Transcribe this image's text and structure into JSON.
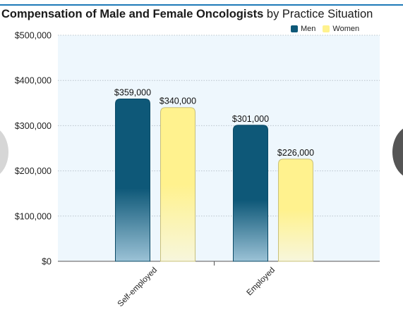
{
  "title": {
    "bold": "Compensation of Male and Female Oncologists",
    "normal": " by Practice Situation"
  },
  "colors": {
    "rule": "#1d7ab8",
    "men_top": "#0e5878",
    "men_bottom": "#9bc2d6",
    "women_top": "#fff28e",
    "women_bottom": "#f7f6dc",
    "plot_bg": "#eef7fd",
    "grid": "#b9c4cc",
    "men_swatch": "#0e5878",
    "women_swatch": "#fff28e"
  },
  "chart_data": {
    "type": "bar",
    "title": "Compensation of Male and Female Oncologists by Practice Situation",
    "categories": [
      "Self-employed",
      "Employed"
    ],
    "series": [
      {
        "name": "Men",
        "values": [
          359000,
          301000
        ],
        "labels": [
          "$359,000",
          "$301,000"
        ]
      },
      {
        "name": "Women",
        "values": [
          340000,
          226000
        ],
        "labels": [
          "$340,000",
          "$226,000"
        ]
      }
    ],
    "ylim": [
      0,
      500000
    ],
    "yticks": [
      0,
      100000,
      200000,
      300000,
      400000,
      500000
    ],
    "ytick_labels": [
      "$0",
      "$100,000",
      "$200,000",
      "$300,000",
      "$400,000",
      "$500,000"
    ],
    "grid": true,
    "legend_position": "top-right",
    "xlabel": "",
    "ylabel": ""
  }
}
